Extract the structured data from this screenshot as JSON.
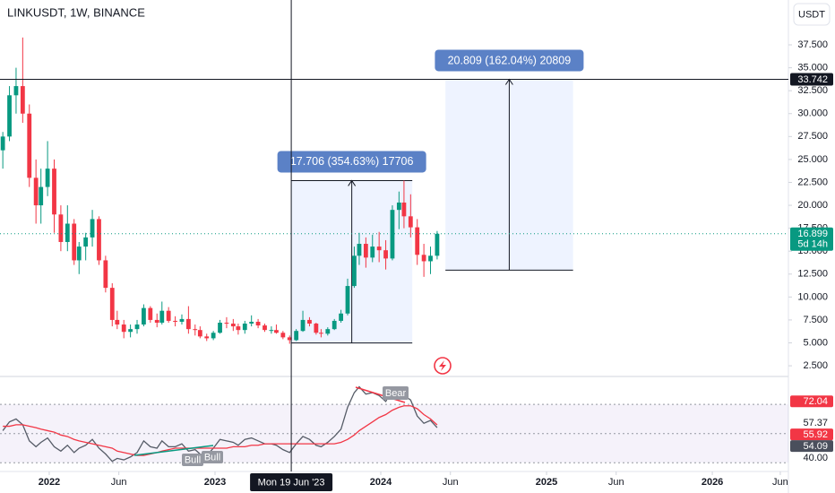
{
  "chart_data": [
    {
      "type": "candlestick",
      "title": "LINKUSDT, 1W, BINANCE",
      "currency": "USDT",
      "x": [
        2021.72,
        2021.76,
        2021.8,
        2021.84,
        2021.88,
        2021.92,
        2021.95,
        2021.99,
        2022.03,
        2022.07,
        2022.11,
        2022.15,
        2022.18,
        2022.22,
        2022.26,
        2022.3,
        2022.34,
        2022.38,
        2022.41,
        2022.45,
        2022.49,
        2022.53,
        2022.57,
        2022.61,
        2022.65,
        2022.68,
        2022.72,
        2022.76,
        2022.8,
        2022.84,
        2022.88,
        2022.91,
        2022.95,
        2022.99,
        2023.03,
        2023.07,
        2023.11,
        2023.14,
        2023.18,
        2023.22,
        2023.26,
        2023.3,
        2023.34,
        2023.37,
        2023.41,
        2023.45,
        2023.49,
        2023.53,
        2023.57,
        2023.61,
        2023.64,
        2023.68,
        2023.72,
        2023.76,
        2023.8,
        2023.84,
        2023.87,
        2023.91,
        2023.95,
        2023.99,
        2024.03,
        2024.07,
        2024.11,
        2024.14,
        2024.18,
        2024.22,
        2024.26,
        2024.3,
        2024.34
      ],
      "open": [
        26,
        27.5,
        32,
        33,
        30,
        23,
        20,
        22,
        24,
        19,
        16,
        18,
        14,
        15.5,
        16.5,
        18.5,
        14,
        11,
        7.5,
        7,
        6.2,
        6.5,
        7,
        8.8,
        7.5,
        7.2,
        8.5,
        7.4,
        7.3,
        7.6,
        6.5,
        6.4,
        5.7,
        5.5,
        6.1,
        7.2,
        7.1,
        6.8,
        6.4,
        7.1,
        7.3,
        6.9,
        6.4,
        6.4,
        6.1,
        5.6,
        5.3,
        6.3,
        7.5,
        7.1,
        6.1,
        6.0,
        6.5,
        7.4,
        8.2,
        11.2,
        14.5,
        15.8,
        14.3,
        15.5,
        15.1,
        14.2,
        19.5,
        20.3,
        18.8,
        17.6,
        14.6,
        13.9,
        14.5
      ],
      "high": [
        28,
        33,
        35,
        38.3,
        31,
        25,
        24,
        27,
        25,
        20,
        20,
        18.5,
        16,
        17,
        19.5,
        18.8,
        14.5,
        11.5,
        8.5,
        7.5,
        7,
        7.5,
        9.2,
        9,
        8.2,
        9.5,
        8.9,
        7.9,
        8.1,
        9,
        7,
        6.8,
        6,
        6.3,
        7.5,
        7.8,
        7.6,
        7.1,
        7.4,
        8,
        7.6,
        7.1,
        6.8,
        7.0,
        6.3,
        5.8,
        6.5,
        8.5,
        7.8,
        7.2,
        6.5,
        6.7,
        7.6,
        8.6,
        12,
        15.5,
        17,
        16.5,
        16.8,
        17.1,
        16.2,
        20,
        21.5,
        22.7,
        21.2,
        18.5,
        15.8,
        15.5,
        17.2
      ],
      "low": [
        24,
        27,
        30,
        29,
        22,
        18,
        18,
        21,
        17,
        15,
        15,
        13.5,
        12.5,
        14,
        15.5,
        13.5,
        10.5,
        6.8,
        6.5,
        5.5,
        5.6,
        6,
        6.8,
        7.2,
        6.7,
        7,
        7.2,
        6.8,
        7,
        6,
        5.8,
        5.5,
        5.2,
        5.3,
        6,
        6.6,
        6.3,
        5.9,
        6,
        6.8,
        6.6,
        6.2,
        6.0,
        6.0,
        5.4,
        4.9,
        5.2,
        6.2,
        6.8,
        5.9,
        5.6,
        5.8,
        6.4,
        7.2,
        8.0,
        11,
        13.5,
        13.2,
        13.8,
        13.8,
        13,
        14,
        17.4,
        17.5,
        16.5,
        13.5,
        12.2,
        12.5,
        14.1
      ],
      "close": [
        27.5,
        32,
        33,
        30,
        23,
        20,
        22,
        24,
        19,
        16,
        18,
        14,
        15.5,
        16.5,
        18.5,
        14,
        11,
        7.5,
        7,
        6.2,
        6.5,
        7,
        8.8,
        7.5,
        7.2,
        8.5,
        7.4,
        7.3,
        7.6,
        6.5,
        6.4,
        5.7,
        5.5,
        6.1,
        7.2,
        7.1,
        6.8,
        6.4,
        7.1,
        7.3,
        6.9,
        6.4,
        6.4,
        6.1,
        5.6,
        5.3,
        6.3,
        7.5,
        7.1,
        6.1,
        6.0,
        6.5,
        7.4,
        8.2,
        11.2,
        14.5,
        15.8,
        14.3,
        15.5,
        15.1,
        14.2,
        19.5,
        20.3,
        18.8,
        17.6,
        14.6,
        13.9,
        14.5,
        16.899
      ],
      "up_color": "#089981",
      "down_color": "#f23645",
      "last_price_countdown": "5d 14h",
      "xlim": [
        2021.703,
        2026.459
      ],
      "xticks": [
        {
          "value": 2022,
          "label": "2022"
        },
        {
          "value": 2022.42,
          "label": "Jun"
        },
        {
          "value": 2023,
          "label": "2023"
        },
        {
          "value": 2024,
          "label": "2024"
        },
        {
          "value": 2024.42,
          "label": "Jun"
        },
        {
          "value": 2025,
          "label": "2025"
        },
        {
          "value": 2025.42,
          "label": "Jun"
        },
        {
          "value": 2026,
          "label": "2026"
        },
        {
          "value": 2026.41,
          "label": "Jun"
        }
      ],
      "ylim": [
        1.53,
        42.39
      ],
      "yticks": [
        {
          "value": 2.5,
          "label": "2.500"
        },
        {
          "value": 5,
          "label": "5.000"
        },
        {
          "value": 7.5,
          "label": "7.500"
        },
        {
          "value": 10,
          "label": "10.000"
        },
        {
          "value": 12.5,
          "label": "12.500"
        },
        {
          "value": 15,
          "label": "15.000"
        },
        {
          "value": 17.5,
          "label": "17.500"
        },
        {
          "value": 20,
          "label": "20.000"
        },
        {
          "value": 22.5,
          "label": "22.500"
        },
        {
          "value": 25,
          "label": "25.000"
        },
        {
          "value": 27.5,
          "label": "27.500"
        },
        {
          "value": 30,
          "label": "30.000"
        },
        {
          "value": 32.5,
          "label": "32.500"
        },
        {
          "value": 35,
          "label": "35.000"
        },
        {
          "value": 37.5,
          "label": "37.500"
        }
      ],
      "crosshair": {
        "x": 2023.46,
        "x_label": "Mon 19 Jun '23",
        "y": 33.742
      },
      "measures": [
        {
          "label": "17.706 (354.63%) 17706",
          "x": [
            2023.46,
            2024.19
          ],
          "y": [
            4.993,
            22.699
          ]
        },
        {
          "label": "20.809 (162.04%) 20809",
          "x": [
            2024.39,
            2025.16
          ],
          "y": [
            12.933,
            33.742
          ]
        }
      ]
    },
    {
      "type": "line",
      "series": [
        {
          "color": "#555b66",
          "values": [
            52,
            58,
            60,
            56,
            45,
            41,
            44,
            47,
            41,
            38,
            42,
            37,
            40,
            42,
            46,
            40,
            36,
            31,
            33,
            32,
            34,
            37,
            45,
            41,
            40,
            45,
            41,
            41,
            43,
            38,
            39,
            36,
            35,
            40,
            46,
            45,
            44,
            42,
            46,
            47,
            45,
            43,
            43,
            42,
            39,
            37,
            43,
            48,
            46,
            42,
            41,
            44,
            48,
            53,
            68,
            78,
            82,
            77,
            78,
            76,
            72,
            80,
            81,
            76,
            73,
            62,
            57,
            59,
            54.09
          ],
          "label_color": "#4a4f5c"
        },
        {
          "color": "#f23645",
          "values": [
            55,
            55,
            56,
            56,
            55,
            54,
            53,
            52,
            51,
            49,
            48,
            46,
            45,
            44,
            43,
            42,
            41,
            40,
            38,
            37,
            36,
            35,
            35,
            36,
            37,
            38,
            39,
            40,
            40,
            40,
            40,
            40,
            40,
            40,
            40,
            40,
            41,
            41,
            41,
            42,
            42,
            43,
            43,
            43,
            43,
            43,
            43,
            43,
            43,
            43,
            43,
            43,
            43,
            44,
            46,
            49,
            52,
            55,
            58,
            61,
            63,
            66,
            68,
            69,
            69,
            67,
            63,
            60,
            55.92
          ],
          "label_color": "#f23645"
        }
      ],
      "levels": [
        {
          "value": 72.04,
          "color": "#f23645"
        },
        {
          "value": 57.37,
          "color": "transparent"
        }
      ],
      "band_levels": [
        70,
        50,
        30
      ],
      "divergences": [
        "Bear",
        "Bull",
        "Bull"
      ],
      "ylim": [
        24.66,
        86.0
      ],
      "yticks": [
        {
          "value": 40,
          "label": "40.00"
        }
      ]
    }
  ]
}
